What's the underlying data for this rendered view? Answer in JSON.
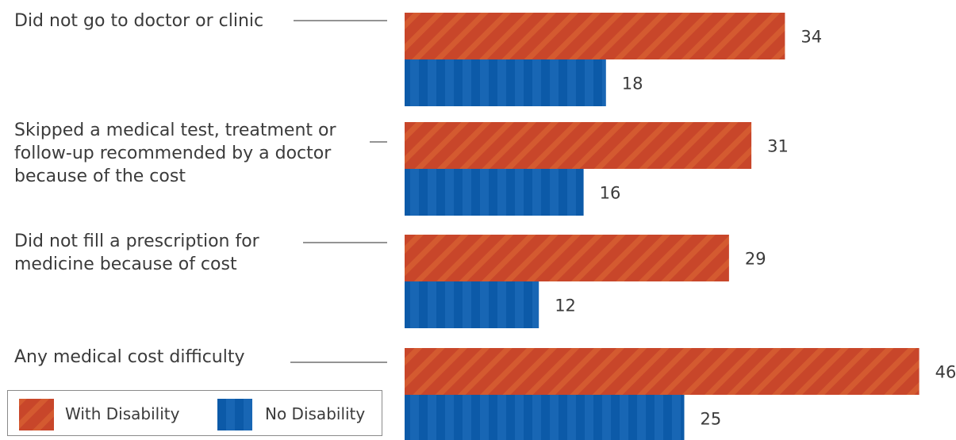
{
  "chart_data": {
    "type": "bar",
    "orientation": "horizontal",
    "categories": [
      "Did not go to doctor or clinic",
      "Skipped a medical test, treatment or follow-up recommended by a doctor because of the cost",
      "Did not fill a prescription for medicine because of cost",
      "Any medical cost difficulty"
    ],
    "category_lines": [
      [
        "Did not go to doctor or clinic"
      ],
      [
        "Skipped a medical test, treatment or",
        "follow-up recommended by a doctor",
        "because of the cost"
      ],
      [
        "Did not fill a prescription for",
        "medicine because of cost"
      ],
      [
        "Any medical cost difficulty"
      ]
    ],
    "series": [
      {
        "name": "With Disability",
        "values": [
          34,
          31,
          29,
          46
        ],
        "color": "#c8462a"
      },
      {
        "name": "No Disability",
        "values": [
          18,
          16,
          12,
          25
        ],
        "color": "#0c5aa8"
      }
    ],
    "xlim": [
      0,
      50
    ],
    "grid": false,
    "legend_position": "bottom-left",
    "data_labels": true
  },
  "legend": {
    "with_label": "With Disability",
    "no_label": "No Disability"
  }
}
